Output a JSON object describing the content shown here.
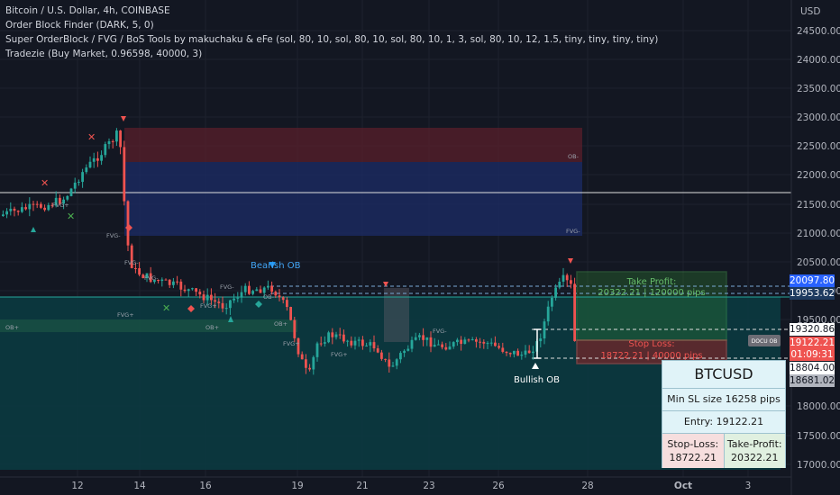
{
  "legend": {
    "line1": "Bitcoin / U.S. Dollar, 4h, COINBASE",
    "line2": "Order Block Finder (DARK, 5, 0)",
    "line3": "Super OrderBlock / FVG / BoS Tools by makuchaku & eFe (sol, 80, 10, sol, 80, 10, sol, 80, 10, 1, 3, sol, 80, 10, 12, 1.5, tiny, tiny, tiny, tiny)",
    "line4": "Tradezie (Buy Market, 0.96598, 40000, 3)"
  },
  "axis": {
    "currency": "USD",
    "price_ticks": [
      "24500.00",
      "24000.00",
      "23500.00",
      "23000.00",
      "22500.00",
      "22000.00",
      "21500.00",
      "21000.00",
      "20500.00",
      "20000.00",
      "19500.00",
      "18000.00",
      "17500.00",
      "17000.00"
    ],
    "time_ticks": [
      "12",
      "14",
      "16",
      "19",
      "21",
      "23",
      "26",
      "28",
      "Oct",
      "3"
    ]
  },
  "price_tags": {
    "p1": "20097.80",
    "p2": "19953.62",
    "p3": "19320.86",
    "p4": "19122.21",
    "countdown": "01:09:31",
    "p5": "18804.00",
    "p6": "18681.02"
  },
  "labels": {
    "bearish_ob": "Bearish OB",
    "bullish_ob": "Bullish OB",
    "take_profit": "Take Profit:",
    "take_profit_value": "20322.21 | 120000 pips",
    "stop_loss": "Stop Loss:",
    "stop_loss_value": "18722.21 | 40000 pips",
    "ob_small": "OB-",
    "fvg_small": "FVG-",
    "fvg_plus": "FVG+",
    "ob_plus": "OB+",
    "docu": "DOCU OB"
  },
  "infobox": {
    "symbol": "BTCUSD",
    "min_sl": "Min SL size 16258 pips",
    "entry": "Entry: 19122.21",
    "sl_label": "Stop-Loss:",
    "sl_value": "18722.21",
    "tp_label": "Take-Profit:",
    "tp_value": "20322.21"
  },
  "colors": {
    "background": "#131722",
    "up": "#26a69a",
    "down": "#ef5350",
    "tp_zone": "#2e7d32",
    "sl_zone": "#b71c1c",
    "ob_blue": "#1e3a8a",
    "ob_red": "#5a1f2b",
    "teal_zone": "#0e4a4e"
  }
}
